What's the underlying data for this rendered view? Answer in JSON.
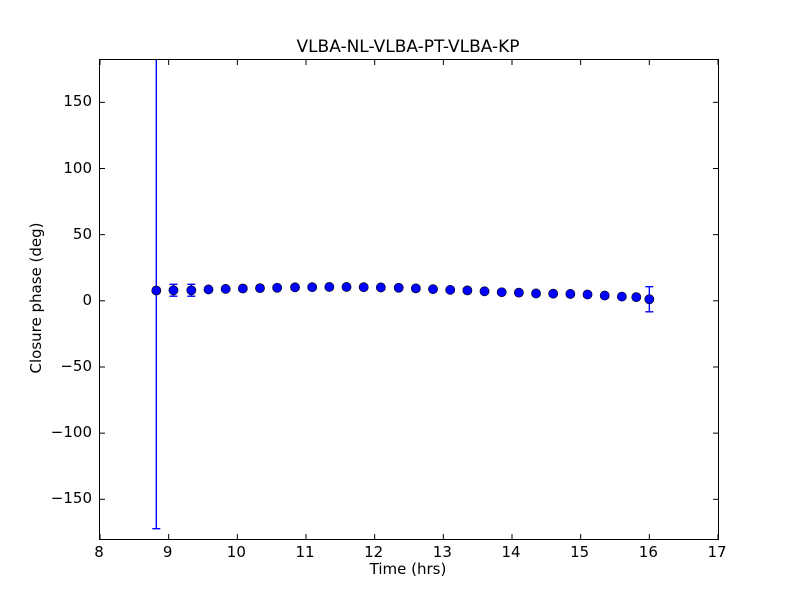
{
  "figure": {
    "background": "#ffffff",
    "frame_color": "#000000"
  },
  "chart_data": {
    "type": "scatter",
    "title": "VLBA-NL-VLBA-PT-VLBA-KP",
    "xlabel": "Time (hrs)",
    "ylabel": "Closure phase (deg)",
    "xlim": [
      8,
      17
    ],
    "ylim": [
      -180,
      182
    ],
    "x_ticks": [
      8,
      9,
      10,
      11,
      12,
      13,
      14,
      15,
      16,
      17
    ],
    "x_tick_labels": [
      "8",
      "9",
      "10",
      "11",
      "12",
      "13",
      "14",
      "15",
      "16",
      "17"
    ],
    "y_ticks": [
      150,
      100,
      50,
      0,
      -50,
      -100,
      -150
    ],
    "y_tick_labels": [
      "150",
      "100",
      "50",
      "0",
      "−50",
      "−100",
      "−150"
    ],
    "grid": false,
    "legend": null,
    "marker": {
      "shape": "circle",
      "color": "#0000ff",
      "edge_color": "#000000",
      "radius_px": 4.6
    },
    "errorbar_color": "#0000ff",
    "series": [
      {
        "name": "closure phase",
        "points_format": [
          "time_hrs",
          "closure_phase_deg",
          "error_deg"
        ],
        "points": [
          [
            8.82,
            7.8,
            180
          ],
          [
            9.07,
            8.0,
            4.5
          ],
          [
            9.33,
            8.0,
            4.5
          ],
          [
            9.58,
            8.6,
            1.5
          ],
          [
            9.83,
            9.0,
            1.5
          ],
          [
            10.08,
            9.3,
            1.5
          ],
          [
            10.33,
            9.6,
            1.5
          ],
          [
            10.58,
            9.9,
            1.5
          ],
          [
            10.84,
            10.2,
            1.5
          ],
          [
            11.09,
            10.3,
            1.5
          ],
          [
            11.34,
            10.5,
            1.5
          ],
          [
            11.59,
            10.5,
            1.5
          ],
          [
            11.84,
            10.3,
            1.5
          ],
          [
            12.09,
            10.1,
            1.5
          ],
          [
            12.35,
            9.9,
            1.5
          ],
          [
            12.6,
            9.4,
            1.5
          ],
          [
            12.85,
            8.8,
            1.5
          ],
          [
            13.1,
            8.3,
            1.5
          ],
          [
            13.35,
            7.9,
            1.5
          ],
          [
            13.6,
            7.2,
            1.5
          ],
          [
            13.85,
            6.5,
            1.5
          ],
          [
            14.1,
            6.2,
            1.5
          ],
          [
            14.35,
            5.6,
            1.5
          ],
          [
            14.6,
            5.4,
            1.5
          ],
          [
            14.85,
            5.2,
            1.5
          ],
          [
            15.1,
            4.8,
            1.5
          ],
          [
            15.35,
            4.0,
            1.5
          ],
          [
            15.6,
            3.2,
            1.5
          ],
          [
            15.81,
            2.8,
            1.5
          ],
          [
            16.0,
            1.2,
            9.5
          ]
        ]
      }
    ]
  }
}
